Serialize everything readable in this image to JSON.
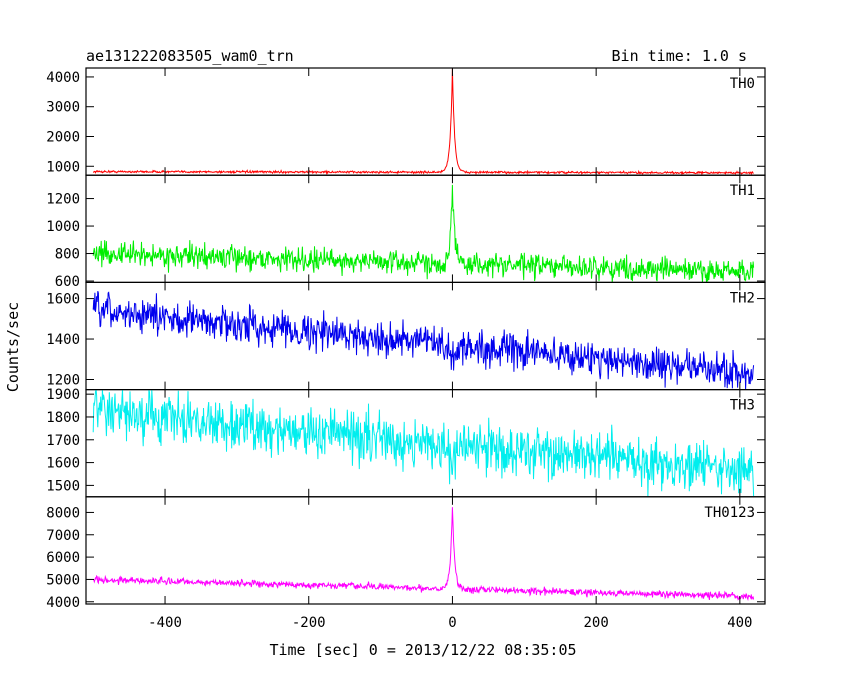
{
  "header": {
    "left_title": "ae131222083505_wam0_trn",
    "bin_time": "Bin time: 1.0 s"
  },
  "chart_data": {
    "type": "line",
    "x_range": [
      -510,
      435
    ],
    "x_ticks": [
      -400,
      -200,
      0,
      200,
      400
    ],
    "xlabel": "Time [sec] 0 = 2013/12/22 08:35:05",
    "ylabel": "Counts/sec",
    "grid": false,
    "panels": [
      {
        "name": "TH0",
        "color": "#ff0000",
        "ylim": [
          700,
          4300
        ],
        "yticks": [
          1000,
          2000,
          3000,
          4000
        ],
        "baseline_start": 820,
        "baseline_end": 780,
        "noise": 18,
        "peak": 4300,
        "peak_time": 0,
        "peak_width": 3
      },
      {
        "name": "TH1",
        "color": "#00ee00",
        "ylim": [
          590,
          1370
        ],
        "yticks": [
          600,
          800,
          1000,
          1200
        ],
        "baseline_start": 800,
        "baseline_end": 665,
        "noise": 42,
        "peak": 1370,
        "peak_time": 0,
        "peak_width": 3
      },
      {
        "name": "TH2",
        "color": "#0000ee",
        "ylim": [
          1150,
          1680
        ],
        "yticks": [
          1200,
          1400,
          1600
        ],
        "baseline_start": 1540,
        "baseline_end": 1230,
        "noise": 42,
        "peak": 1470,
        "peak_time": 0,
        "peak_width": 8
      },
      {
        "name": "TH3",
        "color": "#00eeee",
        "ylim": [
          1450,
          1920
        ],
        "yticks": [
          1500,
          1600,
          1700,
          1800,
          1900
        ],
        "baseline_start": 1820,
        "baseline_end": 1560,
        "noise": 55,
        "peak": 1700,
        "peak_time": 0,
        "peak_width": 5
      },
      {
        "name": "TH0123",
        "color": "#ff00ff",
        "ylim": [
          3900,
          8700
        ],
        "yticks": [
          4000,
          5000,
          6000,
          7000,
          8000
        ],
        "baseline_start": 5000,
        "baseline_end": 4230,
        "noise": 75,
        "peak": 8700,
        "peak_time": 0,
        "peak_width": 3
      }
    ]
  }
}
